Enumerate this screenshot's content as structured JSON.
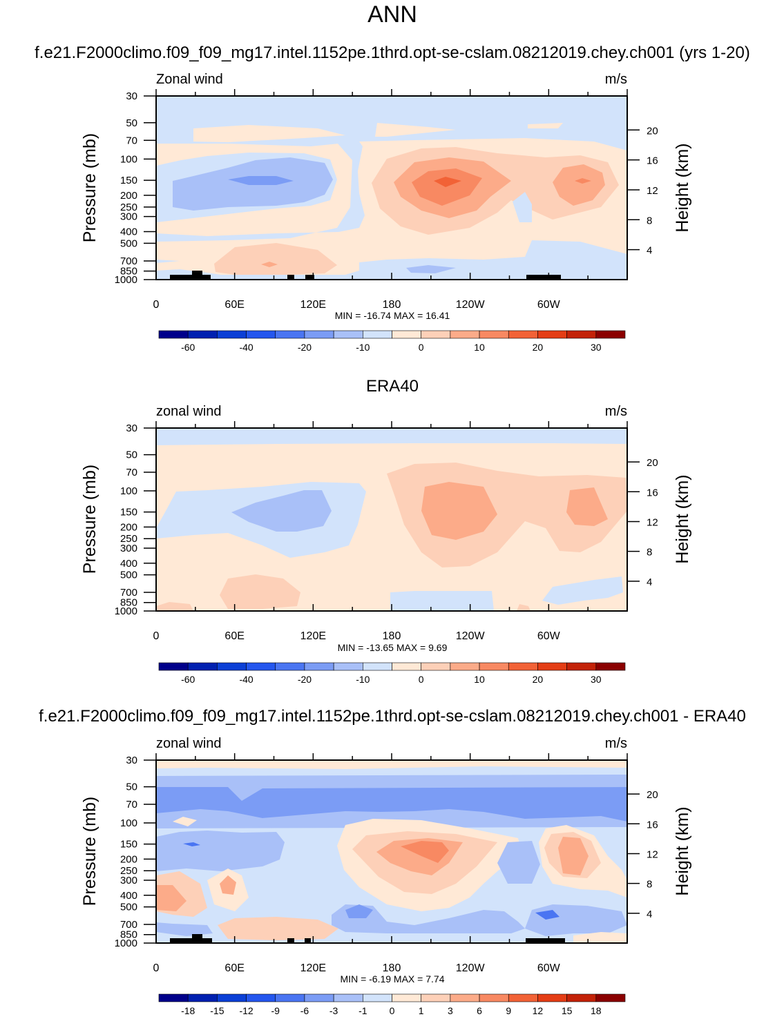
{
  "page": {
    "title": "ANN",
    "panel_titles": [
      "f.e21.F2000climo.f09_f09_mg17.intel.1152pe.1thrd.opt-se-cslam.08212019.chey.ch001 (yrs 1-20)",
      "ERA40",
      "f.e21.F2000climo.f09_f09_mg17.intel.1152pe.1thrd.opt-se-cslam.08212019.chey.ch001 - ERA40"
    ]
  },
  "chart_data": [
    {
      "type": "heatmap",
      "title": "f.e21.F2000climo.f09_f09_mg17.intel.1152pe.1thrd.opt-se-cslam.08212019.chey.ch001 (yrs 1-20)",
      "left_label": "Zonal wind",
      "units": "m/s",
      "xlabel": "",
      "ylabel": "Pressure (mb)",
      "y2label": "Height (km)",
      "x_ticks": [
        "0",
        "60E",
        "120E",
        "180",
        "120W",
        "60W"
      ],
      "x_tick_lons": [
        0,
        60,
        120,
        180,
        240,
        300
      ],
      "xlim": [
        0,
        360
      ],
      "y_ticks": [
        "30",
        "50",
        "70",
        "100",
        "150",
        "200",
        "250",
        "300",
        "400",
        "500",
        "700",
        "850",
        "1000"
      ],
      "y_tick_values": [
        30,
        50,
        70,
        100,
        150,
        200,
        250,
        300,
        400,
        500,
        700,
        850,
        1000
      ],
      "ylim": [
        1000,
        30
      ],
      "y2_ticks": [
        "4",
        "8",
        "12",
        "16",
        "20"
      ],
      "y2_tick_values": [
        4,
        8,
        12,
        16,
        20
      ],
      "min": -16.74,
      "max": 16.41,
      "stats_text": "MIN = -16.74  MAX =  16.41",
      "colorbar_labels": [
        "-60",
        "-40",
        "-20",
        "-10",
        "0",
        "10",
        "20",
        "30"
      ],
      "colorbar_label_positions": [
        1,
        3,
        5,
        7,
        9,
        11,
        13,
        15
      ]
    },
    {
      "type": "heatmap",
      "title": "ERA40",
      "left_label": "zonal wind",
      "units": "m/s",
      "xlabel": "",
      "ylabel": "Pressure (mb)",
      "y2label": "Height (km)",
      "x_ticks": [
        "0",
        "60E",
        "120E",
        "180",
        "120W",
        "60W"
      ],
      "x_tick_lons": [
        0,
        60,
        120,
        180,
        240,
        300
      ],
      "xlim": [
        0,
        360
      ],
      "y_ticks": [
        "30",
        "50",
        "70",
        "100",
        "150",
        "200",
        "250",
        "300",
        "400",
        "500",
        "700",
        "850",
        "1000"
      ],
      "y_tick_values": [
        30,
        50,
        70,
        100,
        150,
        200,
        250,
        300,
        400,
        500,
        700,
        850,
        1000
      ],
      "ylim": [
        1000,
        30
      ],
      "y2_ticks": [
        "4",
        "8",
        "12",
        "16",
        "20"
      ],
      "y2_tick_values": [
        4,
        8,
        12,
        16,
        20
      ],
      "min": -13.65,
      "max": 9.69,
      "stats_text": "MIN = -13.65  MAX =   9.69",
      "colorbar_labels": [
        "-60",
        "-40",
        "-20",
        "-10",
        "0",
        "10",
        "20",
        "30"
      ],
      "colorbar_label_positions": [
        1,
        3,
        5,
        7,
        9,
        11,
        13,
        15
      ]
    },
    {
      "type": "heatmap",
      "title": "f.e21.F2000climo.f09_f09_mg17.intel.1152pe.1thrd.opt-se-cslam.08212019.chey.ch001 - ERA40",
      "left_label": "zonal wind",
      "units": "m/s",
      "xlabel": "",
      "ylabel": "Pressure (mb)",
      "y2label": "Height (km)",
      "x_ticks": [
        "0",
        "60E",
        "120E",
        "180",
        "120W",
        "60W"
      ],
      "x_tick_lons": [
        0,
        60,
        120,
        180,
        240,
        300
      ],
      "xlim": [
        0,
        360
      ],
      "y_ticks": [
        "30",
        "50",
        "70",
        "100",
        "150",
        "200",
        "250",
        "300",
        "400",
        "500",
        "700",
        "850",
        "1000"
      ],
      "y_tick_values": [
        30,
        50,
        70,
        100,
        150,
        200,
        250,
        300,
        400,
        500,
        700,
        850,
        1000
      ],
      "ylim": [
        1000,
        30
      ],
      "y2_ticks": [
        "4",
        "8",
        "12",
        "16",
        "20"
      ],
      "y2_tick_values": [
        4,
        8,
        12,
        16,
        20
      ],
      "min": -6.19,
      "max": 7.74,
      "stats_text": "MIN =  -6.19  MAX =   7.74",
      "colorbar_labels": [
        "-18",
        "-15",
        "-12",
        "-9",
        "-6",
        "-3",
        "-1",
        "0",
        "1",
        "3",
        "6",
        "9",
        "12",
        "15",
        "18"
      ],
      "colorbar_label_positions": [
        1,
        2,
        3,
        4,
        5,
        6,
        7,
        8,
        9,
        10,
        11,
        12,
        13,
        14,
        15
      ]
    }
  ],
  "colors": {
    "colorbar": [
      "#00008b",
      "#0020b0",
      "#0b3fd6",
      "#2456ee",
      "#4a75f2",
      "#7b9cf5",
      "#a9c0f8",
      "#d2e3fb",
      "#ffe9d6",
      "#fdd0b8",
      "#fcab89",
      "#f88962",
      "#f26236",
      "#e43d15",
      "#c32208",
      "#8b0000"
    ],
    "topography": "#000000"
  }
}
